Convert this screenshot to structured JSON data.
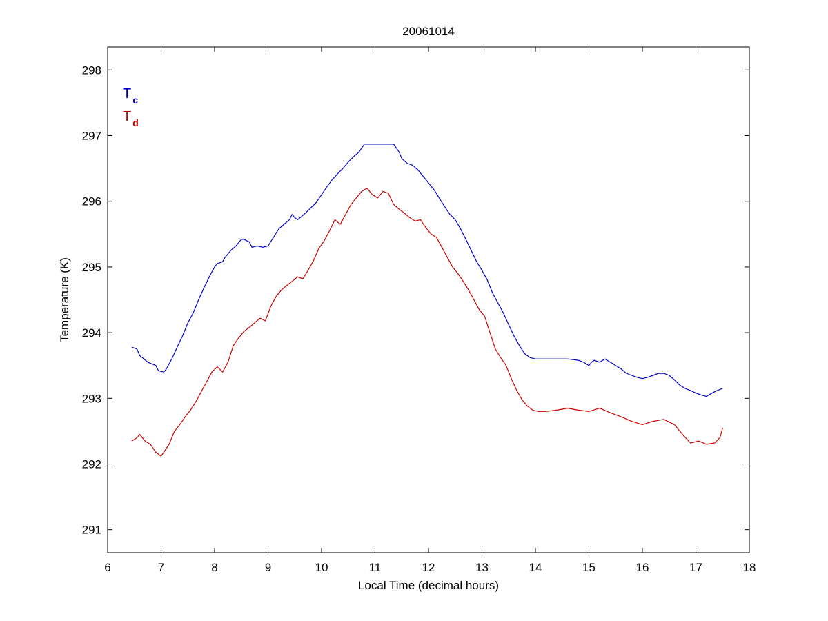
{
  "chart_data": {
    "type": "line",
    "title": "20061014",
    "xlabel": "Local Time (decimal hours)",
    "ylabel": "Temperature (K)",
    "xlim": [
      6,
      18
    ],
    "ylim": [
      290.65,
      298.35
    ],
    "xticks": [
      "6",
      "7",
      "8",
      "9",
      "10",
      "11",
      "12",
      "13",
      "14",
      "15",
      "16",
      "17",
      "18"
    ],
    "yticks": [
      "291",
      "292",
      "293",
      "294",
      "295",
      "296",
      "297",
      "298"
    ],
    "grid": false,
    "legend_placement": "top-left",
    "series": [
      {
        "name": "T",
        "subscript": "c",
        "color": "#0000cc",
        "x": [
          6.45,
          6.55,
          6.6,
          6.65,
          6.75,
          6.9,
          6.95,
          7.05,
          7.1,
          7.2,
          7.3,
          7.4,
          7.5,
          7.6,
          7.7,
          7.8,
          7.9,
          8.0,
          8.05,
          8.15,
          8.2,
          8.3,
          8.4,
          8.5,
          8.55,
          8.65,
          8.7,
          8.8,
          8.9,
          9.0,
          9.1,
          9.2,
          9.3,
          9.4,
          9.45,
          9.5,
          9.55,
          9.6,
          9.7,
          9.8,
          9.9,
          10.0,
          10.1,
          10.2,
          10.3,
          10.4,
          10.5,
          10.6,
          10.7,
          10.8,
          10.9,
          11.0,
          11.2,
          11.35,
          11.45,
          11.5,
          11.6,
          11.7,
          11.8,
          11.9,
          12.0,
          12.1,
          12.2,
          12.3,
          12.4,
          12.5,
          12.6,
          12.7,
          12.8,
          12.9,
          13.0,
          13.1,
          13.2,
          13.3,
          13.4,
          13.5,
          13.6,
          13.7,
          13.8,
          13.9,
          14.0,
          14.2,
          14.4,
          14.6,
          14.8,
          14.9,
          15.0,
          15.05,
          15.1,
          15.2,
          15.3,
          15.4,
          15.5,
          15.6,
          15.7,
          15.8,
          15.9,
          16.0,
          16.1,
          16.2,
          16.3,
          16.4,
          16.5,
          16.6,
          16.7,
          16.8,
          16.9,
          17.0,
          17.1,
          17.2,
          17.3,
          17.4,
          17.5
        ],
        "y": [
          293.78,
          293.75,
          293.65,
          293.62,
          293.55,
          293.5,
          293.42,
          293.4,
          293.45,
          293.6,
          293.78,
          293.95,
          294.15,
          294.3,
          294.5,
          294.68,
          294.85,
          295.0,
          295.05,
          295.08,
          295.15,
          295.25,
          295.32,
          295.42,
          295.42,
          295.38,
          295.3,
          295.32,
          295.3,
          295.32,
          295.45,
          295.58,
          295.65,
          295.72,
          295.8,
          295.75,
          295.72,
          295.75,
          295.82,
          295.9,
          295.98,
          296.1,
          296.22,
          296.33,
          296.42,
          296.5,
          296.6,
          296.68,
          296.75,
          296.87,
          296.87,
          296.87,
          296.87,
          296.87,
          296.75,
          296.65,
          296.58,
          296.55,
          296.48,
          296.38,
          296.28,
          296.18,
          296.05,
          295.92,
          295.8,
          295.72,
          295.58,
          295.42,
          295.25,
          295.08,
          294.95,
          294.8,
          294.6,
          294.45,
          294.3,
          294.12,
          293.95,
          293.8,
          293.68,
          293.62,
          293.6,
          293.6,
          293.6,
          293.6,
          293.58,
          293.55,
          293.5,
          293.55,
          293.58,
          293.55,
          293.6,
          293.55,
          293.5,
          293.45,
          293.38,
          293.35,
          293.32,
          293.3,
          293.32,
          293.35,
          293.38,
          293.38,
          293.35,
          293.28,
          293.2,
          293.15,
          293.12,
          293.08,
          293.05,
          293.03,
          293.08,
          293.12,
          293.15
        ]
      },
      {
        "name": "T",
        "subscript": "d",
        "color": "#cc0000",
        "x": [
          6.45,
          6.55,
          6.6,
          6.7,
          6.8,
          6.9,
          7.0,
          7.05,
          7.15,
          7.25,
          7.35,
          7.45,
          7.55,
          7.65,
          7.75,
          7.85,
          7.95,
          8.05,
          8.15,
          8.25,
          8.35,
          8.45,
          8.55,
          8.65,
          8.75,
          8.85,
          8.95,
          9.05,
          9.15,
          9.25,
          9.35,
          9.45,
          9.55,
          9.65,
          9.75,
          9.85,
          9.95,
          10.05,
          10.15,
          10.25,
          10.35,
          10.45,
          10.55,
          10.65,
          10.75,
          10.85,
          10.95,
          11.05,
          11.15,
          11.25,
          11.35,
          11.45,
          11.55,
          11.65,
          11.75,
          11.85,
          11.95,
          12.05,
          12.15,
          12.25,
          12.35,
          12.45,
          12.55,
          12.65,
          12.75,
          12.85,
          12.95,
          13.05,
          13.15,
          13.25,
          13.35,
          13.45,
          13.55,
          13.65,
          13.75,
          13.85,
          13.95,
          14.05,
          14.2,
          14.4,
          14.6,
          14.8,
          15.0,
          15.2,
          15.4,
          15.6,
          15.8,
          16.0,
          16.2,
          16.4,
          16.6,
          16.75,
          16.9,
          17.05,
          17.2,
          17.35,
          17.45,
          17.5
        ],
        "y": [
          292.35,
          292.4,
          292.45,
          292.35,
          292.3,
          292.18,
          292.12,
          292.18,
          292.3,
          292.5,
          292.6,
          292.72,
          292.82,
          292.95,
          293.1,
          293.25,
          293.4,
          293.48,
          293.4,
          293.55,
          293.8,
          293.92,
          294.02,
          294.08,
          294.15,
          294.22,
          294.18,
          294.4,
          294.55,
          294.65,
          294.72,
          294.78,
          294.85,
          294.82,
          294.95,
          295.1,
          295.28,
          295.4,
          295.55,
          295.72,
          295.65,
          295.8,
          295.95,
          296.05,
          296.15,
          296.2,
          296.1,
          296.05,
          296.15,
          296.12,
          295.95,
          295.88,
          295.82,
          295.75,
          295.7,
          295.72,
          295.6,
          295.5,
          295.45,
          295.3,
          295.15,
          295.0,
          294.9,
          294.78,
          294.65,
          294.5,
          294.35,
          294.25,
          294.0,
          293.75,
          293.62,
          293.5,
          293.3,
          293.12,
          292.98,
          292.88,
          292.82,
          292.8,
          292.8,
          292.82,
          292.85,
          292.82,
          292.8,
          292.85,
          292.78,
          292.72,
          292.65,
          292.6,
          292.65,
          292.68,
          292.6,
          292.45,
          292.32,
          292.35,
          292.3,
          292.32,
          292.4,
          292.55
        ]
      }
    ]
  }
}
